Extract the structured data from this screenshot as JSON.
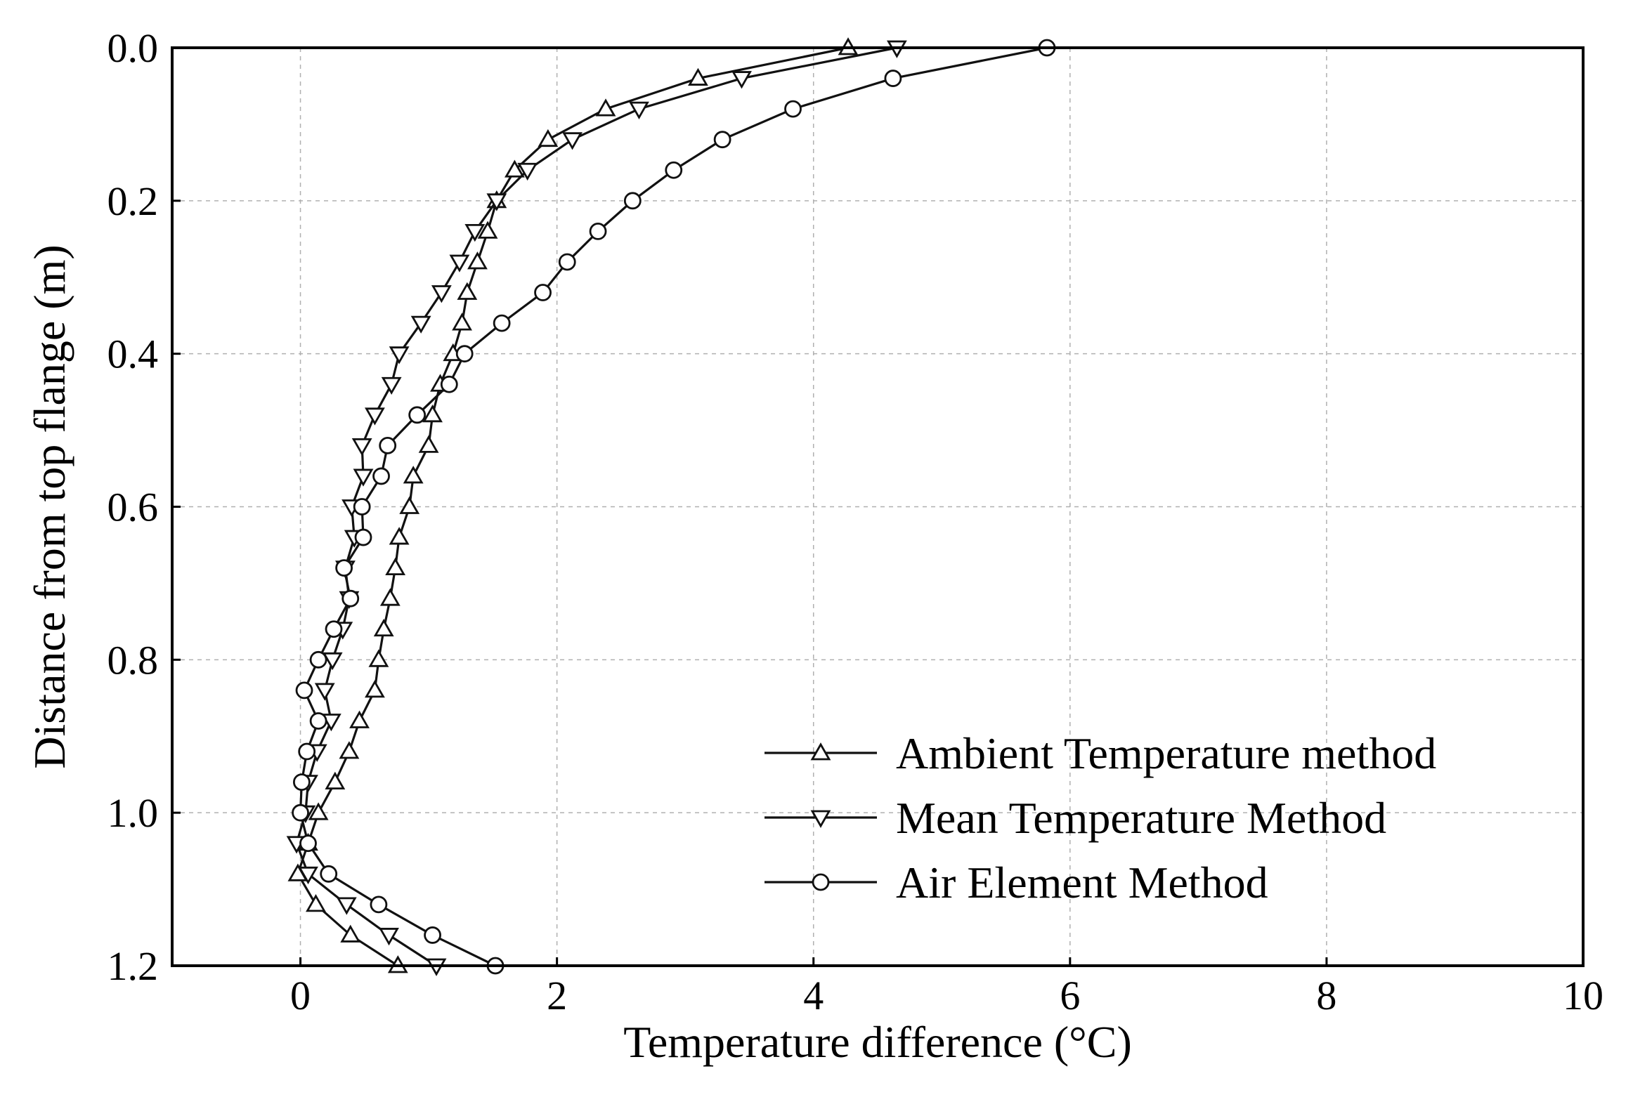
{
  "chart_data": {
    "type": "line",
    "title": "",
    "xlabel": "Temperature difference (°C)",
    "ylabel": "Distance from top flange (m)",
    "xlim": [
      -1,
      10
    ],
    "ylim": [
      0.0,
      1.2
    ],
    "y_inverted": true,
    "grid": true,
    "legend_position": "bottom-right",
    "xticks": [
      0,
      2,
      4,
      6,
      8,
      10
    ],
    "xtick_labels": [
      "0",
      "2",
      "4",
      "6",
      "8",
      "10"
    ],
    "yticks": [
      0.0,
      0.2,
      0.4,
      0.6,
      0.8,
      1.0,
      1.2
    ],
    "ytick_labels": [
      "0.0",
      "0.2",
      "0.4",
      "0.6",
      "0.8",
      "1.0",
      "1.2"
    ],
    "y": [
      0.0,
      0.04,
      0.08,
      0.12,
      0.16,
      0.2,
      0.24,
      0.28,
      0.32,
      0.36,
      0.4,
      0.44,
      0.48,
      0.52,
      0.56,
      0.6,
      0.64,
      0.68,
      0.72,
      0.76,
      0.8,
      0.84,
      0.88,
      0.92,
      0.96,
      1.0,
      1.04,
      1.08,
      1.12,
      1.16,
      1.2
    ],
    "series": [
      {
        "name": "Ambient Temperature method",
        "marker": "triangle-up",
        "x": [
          4.27,
          3.1,
          2.38,
          1.93,
          1.67,
          1.53,
          1.46,
          1.38,
          1.3,
          1.26,
          1.19,
          1.09,
          1.03,
          1.0,
          0.88,
          0.85,
          0.77,
          0.74,
          0.7,
          0.65,
          0.61,
          0.58,
          0.46,
          0.38,
          0.27,
          0.14,
          0.06,
          -0.02,
          0.12,
          0.39,
          0.76
        ]
      },
      {
        "name": "Mean Temperature Method",
        "marker": "triangle-down",
        "x": [
          4.65,
          3.44,
          2.64,
          2.12,
          1.77,
          1.53,
          1.36,
          1.24,
          1.1,
          0.94,
          0.77,
          0.71,
          0.58,
          0.48,
          0.49,
          0.4,
          0.42,
          0.35,
          0.38,
          0.33,
          0.25,
          0.19,
          0.24,
          0.13,
          0.06,
          0.04,
          -0.03,
          0.06,
          0.36,
          0.69,
          1.06
        ]
      },
      {
        "name": "Air Element Method",
        "marker": "circle",
        "x": [
          5.82,
          4.62,
          3.84,
          3.29,
          2.91,
          2.59,
          2.32,
          2.08,
          1.89,
          1.57,
          1.28,
          1.16,
          0.91,
          0.68,
          0.63,
          0.48,
          0.49,
          0.34,
          0.39,
          0.26,
          0.14,
          0.03,
          0.14,
          0.05,
          0.01,
          0.0,
          0.06,
          0.22,
          0.61,
          1.03,
          1.52
        ]
      }
    ]
  }
}
